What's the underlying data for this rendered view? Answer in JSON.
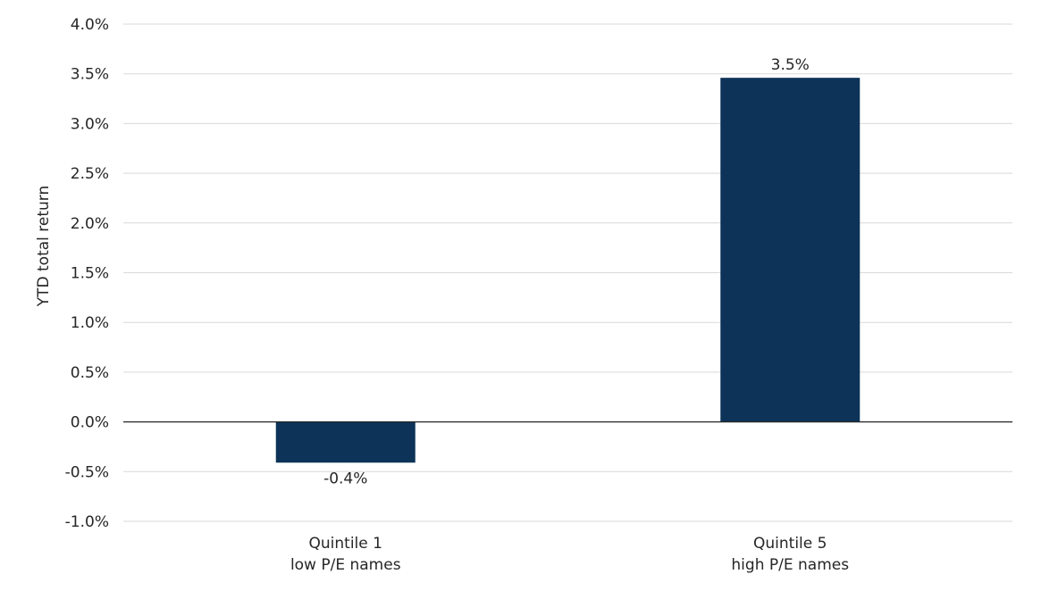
{
  "chart_data": {
    "type": "bar",
    "categories": [
      [
        "Quintile 1",
        "low P/E names"
      ],
      [
        "Quintile 5",
        "high P/E names"
      ]
    ],
    "values": [
      -0.4,
      3.5
    ],
    "data_labels": [
      "-0.4%",
      "3.5%"
    ],
    "bar_values_exact": [
      -0.41,
      3.46
    ],
    "title": "",
    "xlabel": "",
    "ylabel": "YTD total return",
    "ylim": [
      -1.0,
      4.0
    ],
    "yticks": [
      -1.0,
      -0.5,
      0.0,
      0.5,
      1.0,
      1.5,
      2.0,
      2.5,
      3.0,
      3.5,
      4.0
    ],
    "ytick_labels": [
      "-1.0%",
      "-0.5%",
      "0.0%",
      "0.5%",
      "1.0%",
      "1.5%",
      "2.0%",
      "2.5%",
      "3.0%",
      "3.5%",
      "4.0%"
    ],
    "grid": true,
    "legend": "none",
    "colors": {
      "bar": "#0d3358",
      "grid": "#d9d9d9",
      "zero_line": "#262626",
      "text": "#262626"
    }
  }
}
